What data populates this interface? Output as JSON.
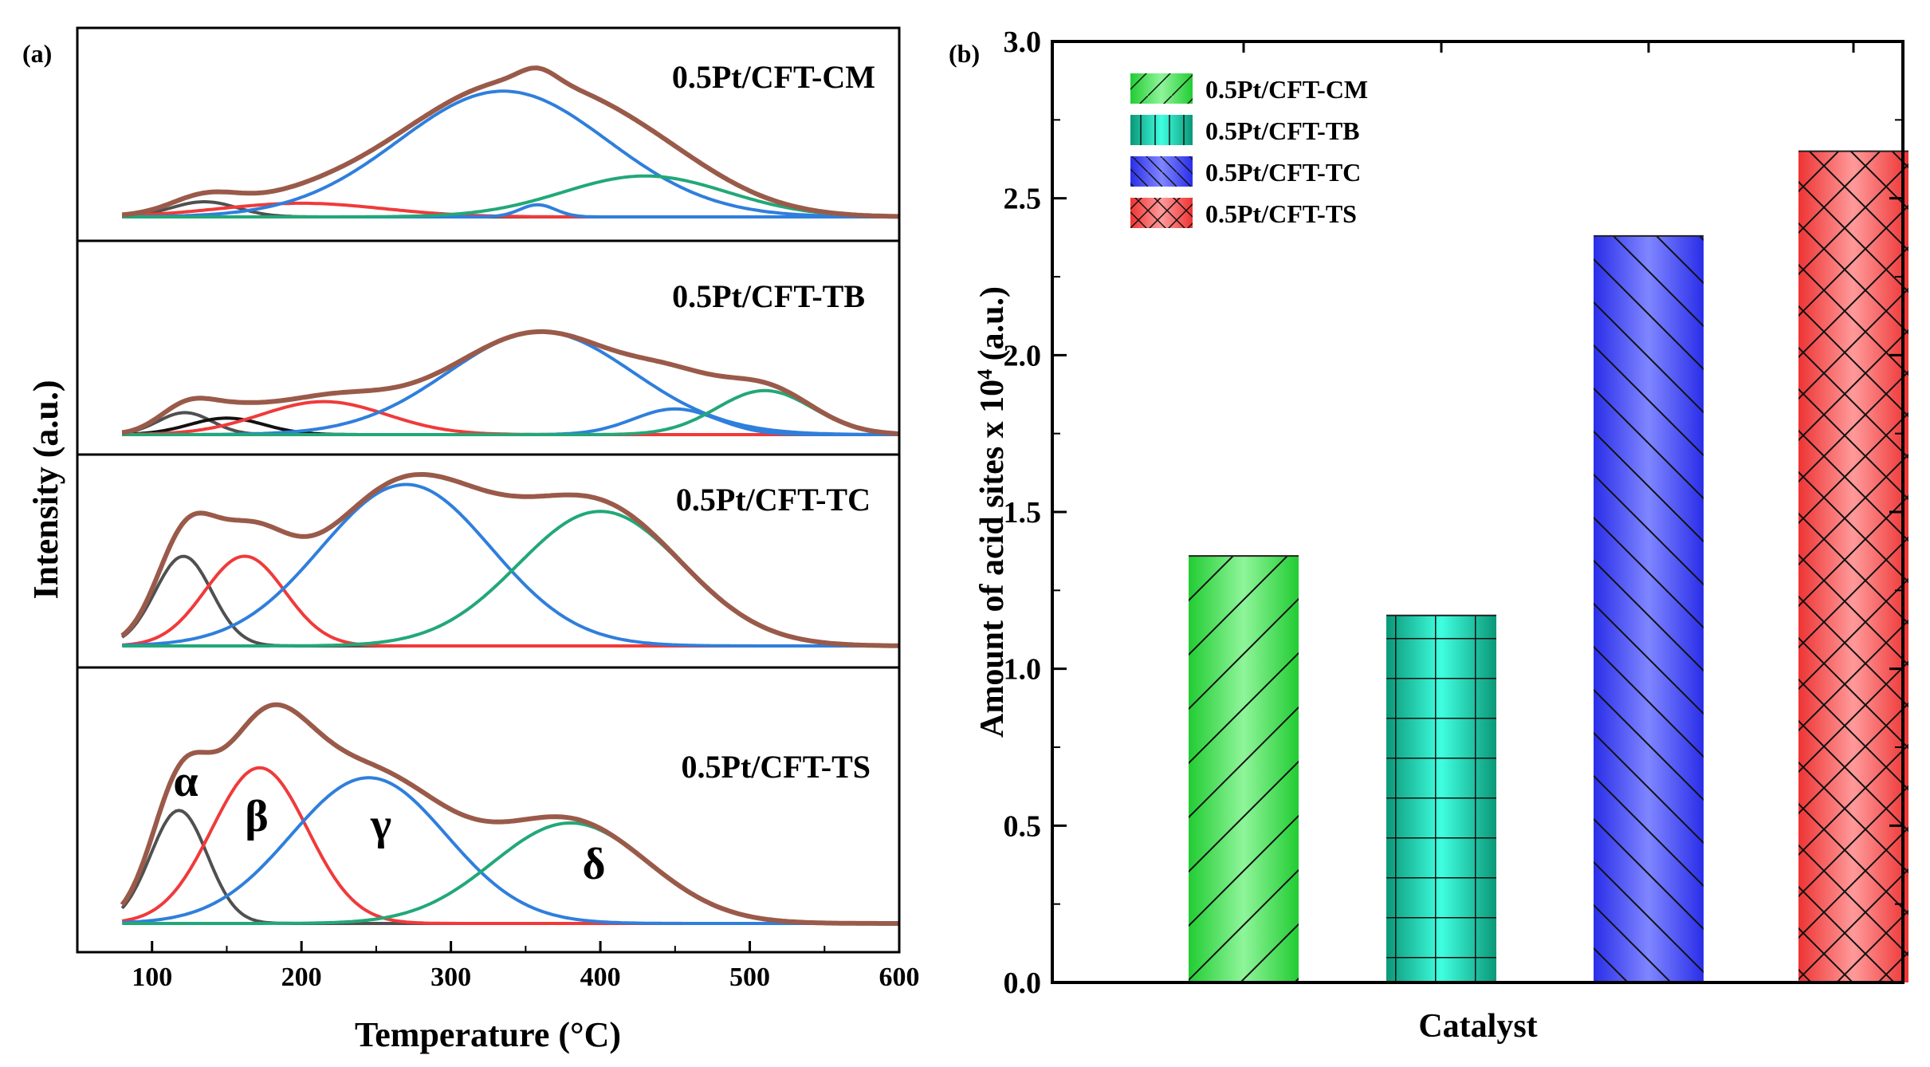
{
  "chart_data": [
    {
      "type": "line",
      "panel_label": "(a)",
      "xlabel": "Temperature (°C)",
      "ylabel": "Intensity (a.u.)",
      "xlim": [
        50,
        600
      ],
      "xticks": [
        100,
        200,
        300,
        400,
        500,
        600
      ],
      "peak_symbols": [
        "α",
        "β",
        "γ",
        "δ"
      ],
      "colors": {
        "alpha": "#505050",
        "beta": "#f03a3a",
        "gamma": "#2f7fdc",
        "delta": "#22a878",
        "envelope": "#9a5a4a",
        "extra": "#111111"
      },
      "panels": [
        {
          "name": "0.5Pt/CFT-CM",
          "peaks": [
            {
              "series": "alpha",
              "center": 135,
              "width": 22,
              "height": 0.1
            },
            {
              "series": "beta",
              "center": 200,
              "width": 55,
              "height": 0.09
            },
            {
              "series": "gamma",
              "center": 335,
              "width": 70,
              "height": 0.83
            },
            {
              "series": "gamma",
              "center": 358,
              "width": 12,
              "height": 0.08
            },
            {
              "series": "delta",
              "center": 430,
              "width": 55,
              "height": 0.27
            }
          ]
        },
        {
          "name": "0.5Pt/CFT-TB",
          "peaks": [
            {
              "series": "alpha",
              "center": 122,
              "width": 18,
              "height": 0.12
            },
            {
              "series": "extra",
              "center": 150,
              "width": 25,
              "height": 0.09
            },
            {
              "series": "beta",
              "center": 215,
              "width": 42,
              "height": 0.18
            },
            {
              "series": "gamma",
              "center": 360,
              "width": 62,
              "height": 0.56
            },
            {
              "series": "gamma",
              "center": 450,
              "width": 28,
              "height": 0.14
            },
            {
              "series": "delta",
              "center": 510,
              "width": 32,
              "height": 0.24
            }
          ]
        },
        {
          "name": "0.5Pt/CFT-TC",
          "peaks": [
            {
              "series": "alpha",
              "center": 121,
              "width": 19,
              "height": 0.5
            },
            {
              "series": "beta",
              "center": 162,
              "width": 27,
              "height": 0.5
            },
            {
              "series": "gamma",
              "center": 270,
              "width": 57,
              "height": 0.9
            },
            {
              "series": "delta",
              "center": 400,
              "width": 55,
              "height": 0.75
            }
          ]
        },
        {
          "name": "0.5Pt/CFT-TS",
          "peaks": [
            {
              "series": "alpha",
              "center": 118,
              "width": 19,
              "height": 0.45
            },
            {
              "series": "beta",
              "center": 172,
              "width": 32,
              "height": 0.62
            },
            {
              "series": "gamma",
              "center": 245,
              "width": 52,
              "height": 0.58
            },
            {
              "series": "delta",
              "center": 380,
              "width": 52,
              "height": 0.4
            }
          ]
        }
      ]
    },
    {
      "type": "bar",
      "panel_label": "(b)",
      "xlabel": "Catalyst",
      "ylabel": "Amount of acid sites x 10^4 (a.u.)",
      "ylabel_main": "Amount of acid sites x 10",
      "ylabel_sup": "4",
      "ylabel_tail": " (a.u.)",
      "ylim": [
        0.0,
        3.0
      ],
      "yticks": [
        "0.0",
        "0.5",
        "1.0",
        "1.5",
        "2.0",
        "2.5",
        "3.0"
      ],
      "categories": [
        "0.5Pt/CFT-CM",
        "0.5Pt/CFT-TB",
        "0.5Pt/CFT-TC",
        "0.5Pt/CFT-TS"
      ],
      "values": [
        1.36,
        1.17,
        2.38,
        2.65
      ],
      "colors": [
        "#33dd44",
        "#10c8a4",
        "#4048f4",
        "#f05050"
      ],
      "hatches": [
        "diagonal",
        "grid",
        "back-diagonal",
        "cross-diagonal"
      ],
      "legend": [
        "0.5Pt/CFT-CM",
        "0.5Pt/CFT-TB",
        "0.5Pt/CFT-TC",
        "0.5Pt/CFT-TS"
      ],
      "legend_position": "top-left"
    }
  ]
}
